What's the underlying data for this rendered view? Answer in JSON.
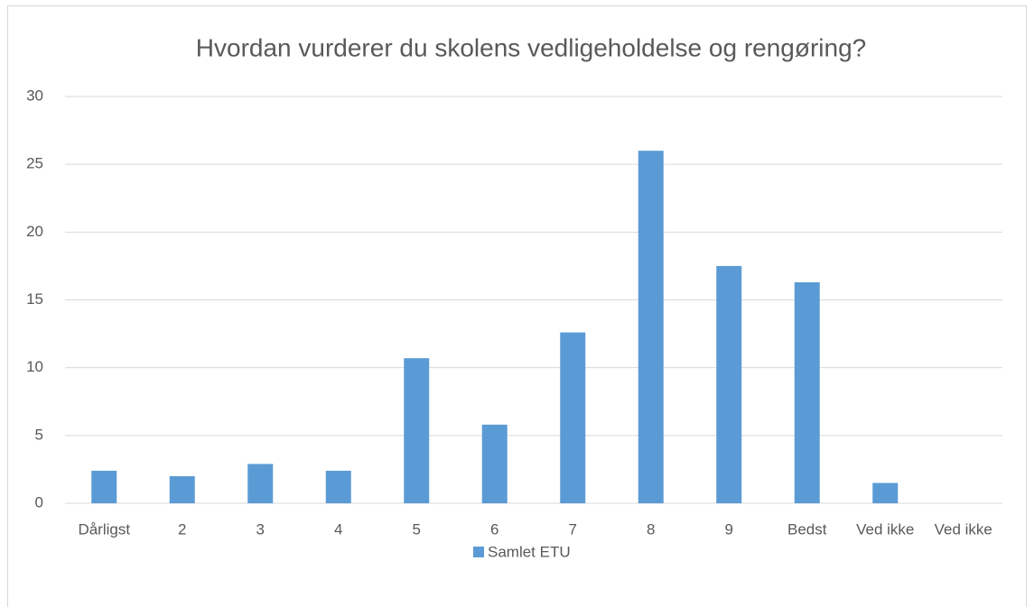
{
  "chart_data": {
    "type": "bar",
    "title": "Hvordan vurderer du skolens vedligeholdelse og rengøring?",
    "categories": [
      "Dårligst",
      "2",
      "3",
      "4",
      "5",
      "6",
      "7",
      "8",
      "9",
      "Bedst",
      "Ved ikke",
      "Ved ikke"
    ],
    "series": [
      {
        "name": "Samlet ETU",
        "color": "#5b9bd5",
        "values": [
          2.4,
          2.0,
          2.9,
          2.4,
          10.7,
          5.8,
          12.6,
          26.0,
          17.5,
          16.3,
          1.5,
          0
        ]
      }
    ],
    "ylim": [
      0,
      30
    ],
    "yticks": [
      0,
      5,
      10,
      15,
      20,
      25,
      30
    ],
    "grid": true,
    "legend": "bottom"
  }
}
